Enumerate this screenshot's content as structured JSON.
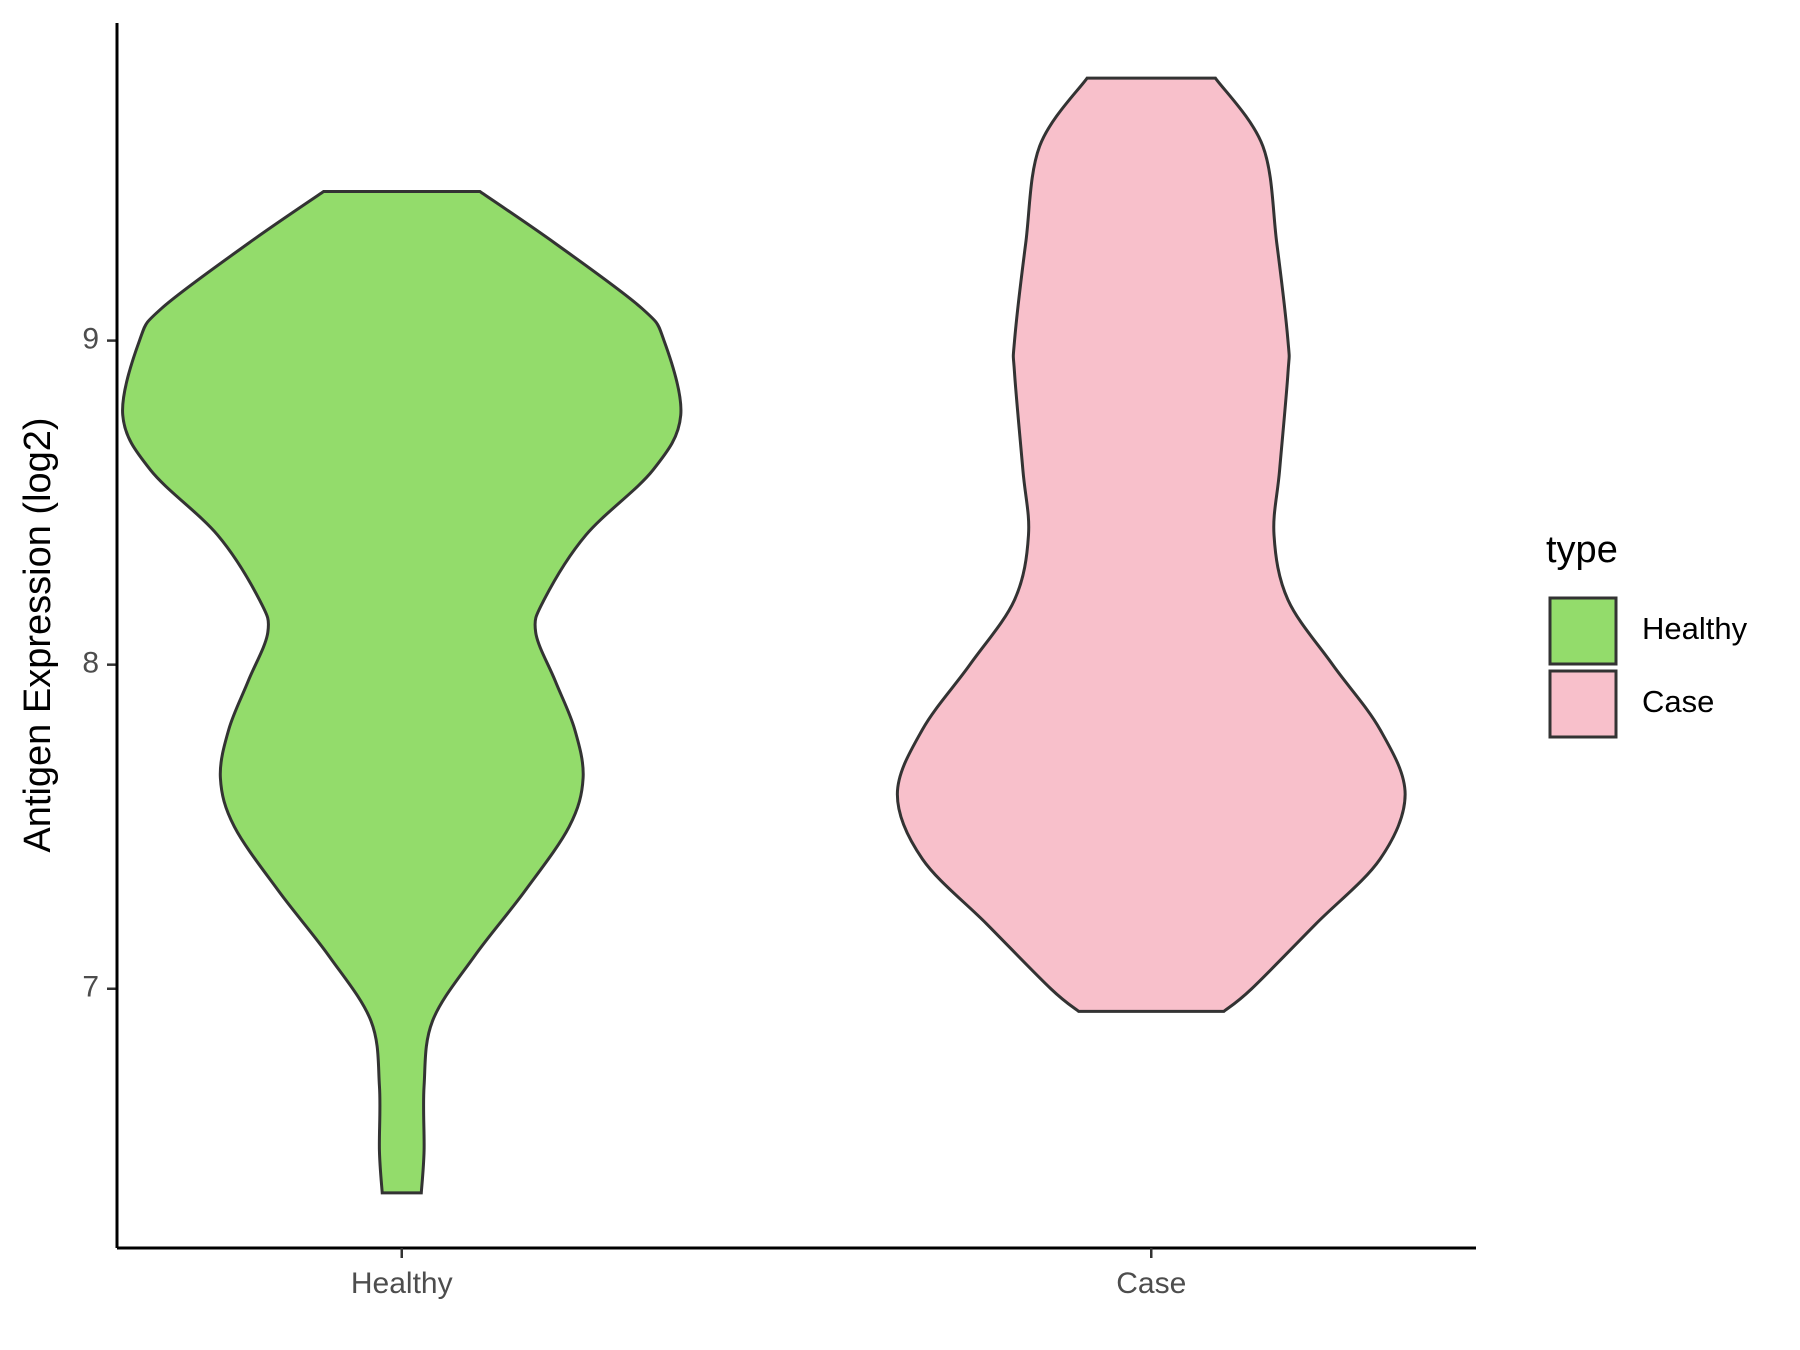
{
  "chart_data": {
    "type": "violin",
    "y_label": "Antigen Expression (log2)",
    "legend_title": "type",
    "categories": [
      "Healthy",
      "Case"
    ],
    "ylim": [
      6.2,
      9.98
    ],
    "yticks": [
      7,
      8,
      9
    ],
    "series": [
      {
        "name": "Healthy",
        "color": "#93dc6b",
        "y": [
          6.37,
          6.5,
          6.7,
          6.9,
          7.1,
          7.3,
          7.5,
          7.65,
          7.8,
          7.95,
          8.1,
          8.2,
          8.4,
          8.6,
          8.77,
          9.0,
          9.1,
          9.3,
          9.46
        ],
        "width": [
          0.07,
          0.08,
          0.08,
          0.11,
          0.26,
          0.44,
          0.6,
          0.65,
          0.62,
          0.55,
          0.48,
          0.51,
          0.66,
          0.9,
          1.0,
          0.94,
          0.86,
          0.55,
          0.28
        ]
      },
      {
        "name": "Case",
        "color": "#f8c0cb",
        "y": [
          6.93,
          7.0,
          7.2,
          7.4,
          7.6,
          7.8,
          8.0,
          8.2,
          8.4,
          8.6,
          8.9,
          9.0,
          9.3,
          9.6,
          9.81
        ],
        "width": [
          0.26,
          0.36,
          0.59,
          0.82,
          0.91,
          0.82,
          0.65,
          0.49,
          0.44,
          0.46,
          0.49,
          0.49,
          0.45,
          0.4,
          0.23
        ]
      }
    ]
  }
}
